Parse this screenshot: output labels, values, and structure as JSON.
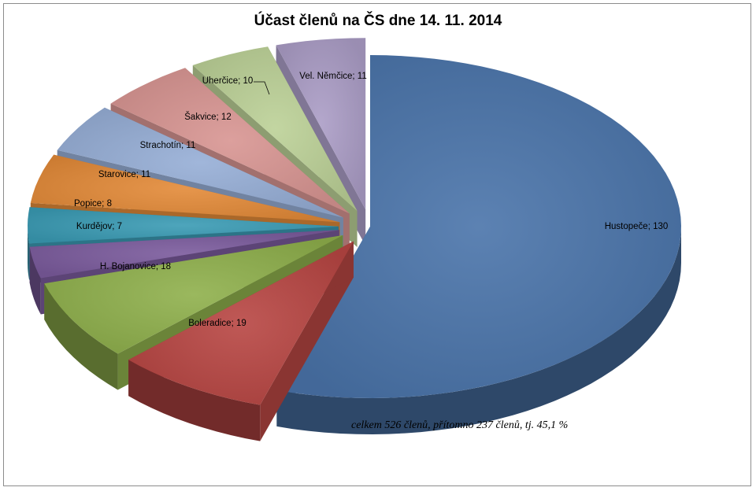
{
  "chart_data": {
    "type": "pie",
    "title": "Účast členů na ČS dne 14. 11. 2014",
    "style": "3d-exploded",
    "slices": [
      {
        "label": "Hustopeče",
        "value": 130,
        "display": "Hustopeče; 130",
        "color": "#4a74aa"
      },
      {
        "label": "Boleradice",
        "value": 19,
        "display": "Boleradice; 19",
        "color": "#b84643"
      },
      {
        "label": "H. Bojanovice",
        "value": 18,
        "display": "H. Bojanovice; 18",
        "color": "#8fb04c"
      },
      {
        "label": "Kurdějov",
        "value": 7,
        "display": "Kurdějov; 7",
        "color": "#7b5b9d"
      },
      {
        "label": "Popice",
        "value": 8,
        "display": "Popice; 8",
        "color": "#3a9bb4"
      },
      {
        "label": "Starovice",
        "value": 11,
        "display": "Starovice; 11",
        "color": "#e38a38"
      },
      {
        "label": "Strachotín",
        "value": 11,
        "display": "Strachotín; 11",
        "color": "#96aed6"
      },
      {
        "label": "Šakvice",
        "value": 12,
        "display": "Šakvice; 12",
        "color": "#d89592"
      },
      {
        "label": "Uherčice",
        "value": 10,
        "display": "Uherčice; 10",
        "color": "#bcd197"
      },
      {
        "label": "Vel. Němčice",
        "value": 11,
        "display": "Vel. Němčice; 11",
        "color": "#ab9dc6"
      }
    ],
    "annotation": "celkem 526 členů, přítomno 237 členů, tj. 45,1 %"
  }
}
